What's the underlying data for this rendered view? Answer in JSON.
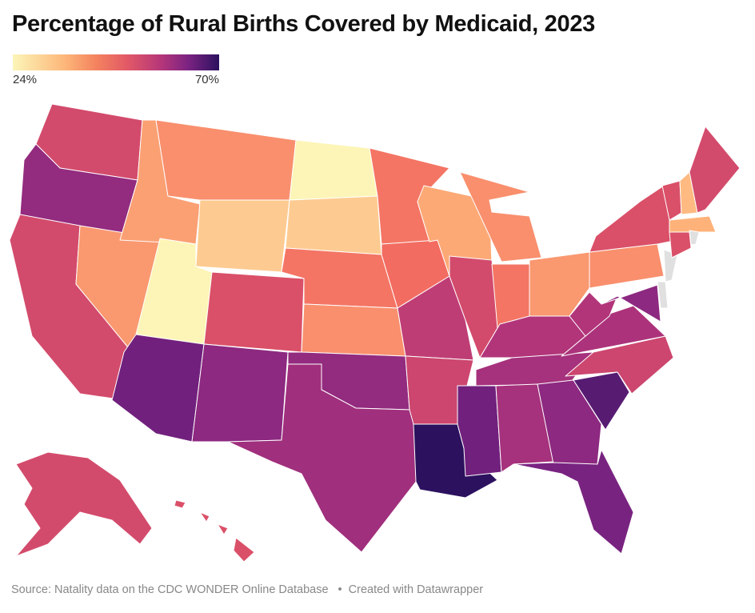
{
  "title": "Percentage of Rural Births Covered by Medicaid, 2023",
  "legend": {
    "min_label": "24%",
    "max_label": "70%",
    "min": 24,
    "max": 70,
    "colors": [
      "#fcfdbf",
      "#feb078",
      "#f1605d",
      "#b5367a",
      "#7b2382",
      "#2c115f"
    ]
  },
  "no_data_color": "#e0e0e0",
  "footer": {
    "source": "Source: Natality data on the CDC WONDER Online Database",
    "separator": "•",
    "credit": "Created with Datawrapper"
  },
  "states": [
    {
      "id": "WA",
      "value": 47
    },
    {
      "id": "OR",
      "value": 57
    },
    {
      "id": "CA",
      "value": 47
    },
    {
      "id": "NV",
      "value": 36
    },
    {
      "id": "ID",
      "value": 35
    },
    {
      "id": "MT",
      "value": 37
    },
    {
      "id": "WY",
      "value": 30
    },
    {
      "id": "UT",
      "value": 25
    },
    {
      "id": "AZ",
      "value": 62
    },
    {
      "id": "CO",
      "value": 46
    },
    {
      "id": "NM",
      "value": 58
    },
    {
      "id": "ND",
      "value": 25
    },
    {
      "id": "SD",
      "value": 30
    },
    {
      "id": "NE",
      "value": 40
    },
    {
      "id": "KS",
      "value": 37
    },
    {
      "id": "OK",
      "value": 57
    },
    {
      "id": "TX",
      "value": 55
    },
    {
      "id": "MN",
      "value": 40
    },
    {
      "id": "IA",
      "value": 41
    },
    {
      "id": "MO",
      "value": 50
    },
    {
      "id": "AR",
      "value": 48
    },
    {
      "id": "LA",
      "value": 70
    },
    {
      "id": "WI",
      "value": 34
    },
    {
      "id": "IL",
      "value": 47
    },
    {
      "id": "MI",
      "value": 37
    },
    {
      "id": "IN",
      "value": 40
    },
    {
      "id": "OH",
      "value": 36
    },
    {
      "id": "KY",
      "value": 52
    },
    {
      "id": "TN",
      "value": 54
    },
    {
      "id": "MS",
      "value": 62
    },
    {
      "id": "AL",
      "value": 54
    },
    {
      "id": "GA",
      "value": 58
    },
    {
      "id": "FL",
      "value": 61
    },
    {
      "id": "SC",
      "value": 65
    },
    {
      "id": "NC",
      "value": 48
    },
    {
      "id": "VA",
      "value": 53
    },
    {
      "id": "WV",
      "value": 52
    },
    {
      "id": "PA",
      "value": 37
    },
    {
      "id": "NY",
      "value": 46
    },
    {
      "id": "MD",
      "value": 58
    },
    {
      "id": "DE",
      "value": null
    },
    {
      "id": "NJ",
      "value": null
    },
    {
      "id": "VT",
      "value": 46
    },
    {
      "id": "NH",
      "value": 32
    },
    {
      "id": "ME",
      "value": 47
    },
    {
      "id": "MA",
      "value": 33
    },
    {
      "id": "CT",
      "value": 46
    },
    {
      "id": "RI",
      "value": null
    },
    {
      "id": "AK",
      "value": 47
    },
    {
      "id": "HI",
      "value": 46
    }
  ]
}
